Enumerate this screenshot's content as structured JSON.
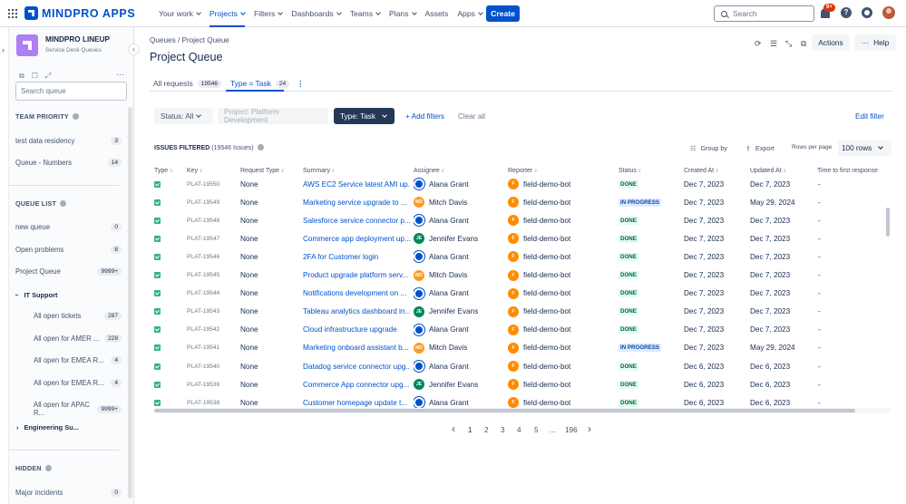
{
  "app": {
    "name": "MINDPRO APPS"
  },
  "nav": [
    {
      "label": "Your work",
      "caret": true
    },
    {
      "label": "Projects",
      "caret": true,
      "active": true
    },
    {
      "label": "Filters",
      "caret": true
    },
    {
      "label": "Dashboards",
      "caret": true
    },
    {
      "label": "Teams",
      "caret": true
    },
    {
      "label": "Plans",
      "caret": true
    },
    {
      "label": "Assets",
      "caret": false
    },
    {
      "label": "Apps",
      "caret": true
    }
  ],
  "create_label": "Create",
  "search_placeholder": "Search",
  "notifications_badge": "9+",
  "help_glyph": "?",
  "sidebar": {
    "project_name": "MINDPRO LINEUP",
    "project_sub": "Service Desk Queues",
    "search_placeholder": "Search queue",
    "team_priority_title": "TEAM PRIORITY",
    "team_priority": [
      {
        "label": "test data residency",
        "count": "3"
      },
      {
        "label": "Queue - Numbers",
        "count": "14"
      }
    ],
    "queue_list_title": "QUEUE LIST",
    "queues": [
      {
        "label": "new queue",
        "count": "0"
      },
      {
        "label": "Open problems",
        "count": "8"
      },
      {
        "label": "Project Queue",
        "count": "9999+"
      }
    ],
    "it_support_label": "IT Support",
    "it_support_items": [
      {
        "label": "All open tickets",
        "count": "287"
      },
      {
        "label": "All open for AMER ...",
        "count": "228"
      },
      {
        "label": "All open for EMEA R...",
        "count": "4"
      },
      {
        "label": "All open for EMEA R...",
        "count": "4"
      },
      {
        "label": "All open for APAC R...",
        "count": "9999+"
      }
    ],
    "engineering_label": "Engineering Su...",
    "hidden_title": "HIDDEN",
    "hidden": [
      {
        "label": "Major incidents",
        "count": "0"
      }
    ]
  },
  "main": {
    "breadcrumb": "Queues / Project Queue",
    "title": "Project Queue",
    "actions_label": "Actions",
    "help_label": "Help",
    "tabs": [
      {
        "label": "All requests",
        "count": "19546"
      },
      {
        "label": "Type = Task",
        "count": "24"
      }
    ],
    "filters": {
      "status": "Status: All",
      "project": "Project: Platform Development",
      "type": "Type: Task",
      "add": "+ Add filters",
      "clear": "Clear all",
      "edit": "Edit filter"
    },
    "issues_filtered_label": "ISSUES FILTERED",
    "issues_filtered_count": "(19546 Issues)",
    "group_by_label": "Group by",
    "export_label": "Export",
    "rows_per_page_label": "Rows per page",
    "rows_per_page_value": "100 rows",
    "columns": [
      "Type",
      "Key",
      "Request Type",
      "Summary",
      "Assignee",
      "Reporter",
      "Status",
      "Created At",
      "Updated At",
      "Time to first response"
    ],
    "rows": [
      {
        "key": "PLAT-19550",
        "req": "None",
        "summary": "AWS EC2 Service latest AMI up...",
        "assignee": "Alana Grant",
        "reporter": "field-demo-bot",
        "status": "DONE",
        "created": "Dec 7, 2023",
        "updated": "Dec 7, 2023",
        "ttfr": "-"
      },
      {
        "key": "PLAT-19549",
        "req": "None",
        "summary": "Marketing service upgrade to ...",
        "assignee": "Mitch Davis",
        "reporter": "field-demo-bot",
        "status": "IN PROGRESS",
        "created": "Dec 7, 2023",
        "updated": "May 29, 2024",
        "ttfr": "-"
      },
      {
        "key": "PLAT-19548",
        "req": "None",
        "summary": "Salesforce service connector p...",
        "assignee": "Alana Grant",
        "reporter": "field-demo-bot",
        "status": "DONE",
        "created": "Dec 7, 2023",
        "updated": "Dec 7, 2023",
        "ttfr": "-"
      },
      {
        "key": "PLAT-19547",
        "req": "None",
        "summary": "Commerce app deployment up...",
        "assignee": "Jennifer Evans",
        "reporter": "field-demo-bot",
        "status": "DONE",
        "created": "Dec 7, 2023",
        "updated": "Dec 7, 2023",
        "ttfr": "-"
      },
      {
        "key": "PLAT-19546",
        "req": "None",
        "summary": "2FA for Customer login",
        "assignee": "Alana Grant",
        "reporter": "field-demo-bot",
        "status": "DONE",
        "created": "Dec 7, 2023",
        "updated": "Dec 7, 2023",
        "ttfr": "-"
      },
      {
        "key": "PLAT-19545",
        "req": "None",
        "summary": "Product upgrade platform serv...",
        "assignee": "Mitch Davis",
        "reporter": "field-demo-bot",
        "status": "DONE",
        "created": "Dec 7, 2023",
        "updated": "Dec 7, 2023",
        "ttfr": "-"
      },
      {
        "key": "PLAT-19544",
        "req": "None",
        "summary": "Notifications development on ...",
        "assignee": "Alana Grant",
        "reporter": "field-demo-bot",
        "status": "DONE",
        "created": "Dec 7, 2023",
        "updated": "Dec 7, 2023",
        "ttfr": "-"
      },
      {
        "key": "PLAT-19543",
        "req": "None",
        "summary": "Tableau analytics dashboard in...",
        "assignee": "Jennifer Evans",
        "reporter": "field-demo-bot",
        "status": "DONE",
        "created": "Dec 7, 2023",
        "updated": "Dec 7, 2023",
        "ttfr": "-"
      },
      {
        "key": "PLAT-19542",
        "req": "None",
        "summary": "Cloud infrastructure upgrade",
        "assignee": "Alana Grant",
        "reporter": "field-demo-bot",
        "status": "DONE",
        "created": "Dec 7, 2023",
        "updated": "Dec 7, 2023",
        "ttfr": "-"
      },
      {
        "key": "PLAT-19541",
        "req": "None",
        "summary": "Marketing onboard assistant b...",
        "assignee": "Mitch Davis",
        "reporter": "field-demo-bot",
        "status": "IN PROGRESS",
        "created": "Dec 7, 2023",
        "updated": "May 29, 2024",
        "ttfr": "-"
      },
      {
        "key": "PLAT-19540",
        "req": "None",
        "summary": "Datadog service connector upg...",
        "assignee": "Alana Grant",
        "reporter": "field-demo-bot",
        "status": "DONE",
        "created": "Dec 6, 2023",
        "updated": "Dec 6, 2023",
        "ttfr": "-"
      },
      {
        "key": "PLAT-19539",
        "req": "None",
        "summary": "Commerce App connector upg...",
        "assignee": "Jennifer Evans",
        "reporter": "field-demo-bot",
        "status": "DONE",
        "created": "Dec 6, 2023",
        "updated": "Dec 6, 2023",
        "ttfr": "-"
      },
      {
        "key": "PLAT-19538",
        "req": "None",
        "summary": "Customer homepage update t...",
        "assignee": "Alana Grant",
        "reporter": "field-demo-bot",
        "status": "DONE",
        "created": "Dec 6, 2023",
        "updated": "Dec 6, 2023",
        "ttfr": "-"
      }
    ],
    "assignee_initials": {
      "Mitch Davis": "MD",
      "Jennifer Evans": "JE"
    },
    "reporter_initial": "F",
    "pagination": [
      "1",
      "2",
      "3",
      "4",
      "5",
      "...",
      "196"
    ]
  },
  "colors": {
    "accent": "#0052cc",
    "done_bg": "#e3fcef",
    "done_fg": "#006644",
    "inprogress_bg": "#deebff",
    "inprogress_fg": "#0747a6",
    "avatar_alana": "#0052cc",
    "avatar_mitch": "#ff991f",
    "avatar_jennifer": "#00875a",
    "avatar_bot": "#ff8b00"
  }
}
